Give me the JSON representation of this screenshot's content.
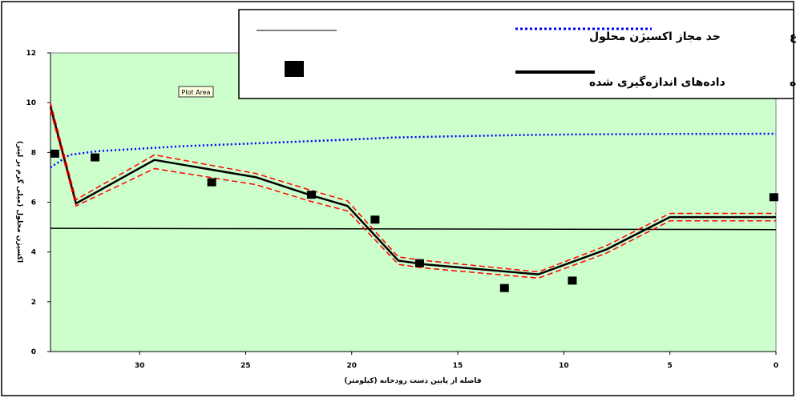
{
  "chart_data": {
    "type": "line",
    "title": "",
    "xlabel": "فاصله از پایین دست رودخانه (کیلومتر)",
    "ylabel": "اکسیژن محلول (میلی گرم بر لیتر)",
    "xlim": [
      34.2,
      0
    ],
    "ylim": [
      0,
      12
    ],
    "x_reversed": true,
    "x_ticks": [
      30,
      25,
      20,
      15,
      10,
      5,
      0
    ],
    "y_ticks": [
      0,
      2,
      4,
      6,
      8,
      10,
      12
    ],
    "grid": false,
    "legend_position": "top-right",
    "plot_background": "#ccffcc",
    "series": [
      {
        "name": "حد اکسیژن اشباع",
        "style": "dotted",
        "color": "#0000ff",
        "x": [
          34.2,
          33.3,
          32,
          30,
          28,
          25,
          22,
          20,
          18,
          15,
          12,
          10,
          8,
          5,
          0
        ],
        "y": [
          7.4,
          7.9,
          8.05,
          8.15,
          8.25,
          8.35,
          8.45,
          8.52,
          8.6,
          8.65,
          8.7,
          8.72,
          8.73,
          8.74,
          8.75
        ]
      },
      {
        "name": "حد مجاز اکسیژن محلول",
        "style": "solid-thin",
        "color": "#000000",
        "x": [
          34.2,
          0
        ],
        "y": [
          4.95,
          4.9
        ]
      },
      {
        "name": "اکسیژن محلول شبیه‌سازی شده",
        "style": "solid-thick",
        "color": "#000000",
        "x": [
          34.2,
          33,
          29.3,
          24.5,
          22,
          20.2,
          17.8,
          16.5,
          11.2,
          8,
          5,
          0
        ],
        "y": [
          9.85,
          5.95,
          7.7,
          7.0,
          6.3,
          5.85,
          3.65,
          3.5,
          3.1,
          4.1,
          5.4,
          5.4
        ]
      },
      {
        "style": "dashed",
        "color": "#ff0000",
        "x": [
          34.2,
          33,
          29.3,
          24.5,
          22,
          20.2,
          17.8,
          16.5,
          11.2,
          8,
          5,
          0
        ],
        "y": [
          10.0,
          6.1,
          7.9,
          7.15,
          6.5,
          6.05,
          3.8,
          3.65,
          3.2,
          4.25,
          5.55,
          5.55
        ]
      },
      {
        "style": "dashed",
        "color": "#ff0000",
        "x": [
          34.2,
          33,
          29.3,
          24.5,
          22,
          20.2,
          17.8,
          16.5,
          11.2,
          8,
          5,
          0
        ],
        "y": [
          9.7,
          5.85,
          7.35,
          6.7,
          6.05,
          5.65,
          3.5,
          3.35,
          2.95,
          3.95,
          5.25,
          5.25
        ]
      },
      {
        "name": "داده‌های اندازه‌گیری شده",
        "style": "markers",
        "color": "#000000",
        "x": [
          34,
          32.1,
          26.6,
          21.9,
          18.9,
          16.8,
          12.8,
          9.6,
          0.1
        ],
        "y": [
          7.95,
          7.8,
          6.8,
          6.3,
          5.3,
          3.55,
          2.55,
          2.85,
          6.2
        ]
      }
    ]
  },
  "legend": {
    "saturation": "حد اکسیژن اشباع",
    "allowable": "حد مجاز اکسیژن محلول",
    "simulated": "اکسیژن محلول شبیه‌سازی شده",
    "measured": "داده‌های اندازه‌گیری شده"
  },
  "tooltip": "Plot Area",
  "colors": {
    "plot_background": "#ccffcc",
    "saturation": "#0000ff",
    "band": "#ff0000",
    "line": "#000000"
  }
}
